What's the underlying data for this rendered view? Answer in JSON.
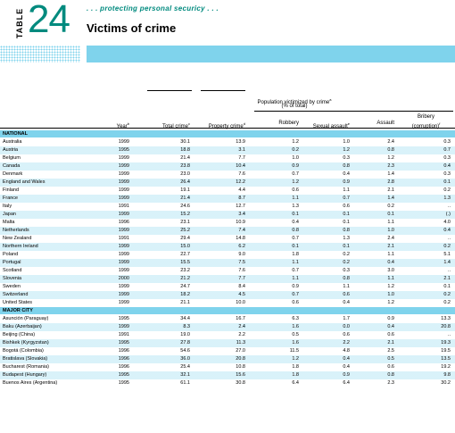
{
  "header": {
    "table_label": "TABLE",
    "table_number": "24",
    "tagline": ". . . protecting personal securicy . . .",
    "title": "Victims of crime"
  },
  "columns": {
    "group_title": "Population victimized by crime",
    "group_sup": "a",
    "group_sub": "(% of total)",
    "year": "Year",
    "year_sup": "b",
    "total": "Total crime",
    "total_sup": "c",
    "property": "Property crime",
    "property_sup": "d",
    "robbery": "Robbery",
    "sexual": "Sexual assault",
    "sexual_sup": "e",
    "assault": "Assault",
    "bribery_1": "Bribery",
    "bribery_2": "(corruption)",
    "bribery_sup": "f"
  },
  "sections": {
    "national": "NATIONAL",
    "major_city": "MAJOR CITY"
  },
  "national_rows": [
    [
      "Australia",
      "1999",
      "30.1",
      "13.9",
      "1.2",
      "1.0",
      "2.4",
      "0.3"
    ],
    [
      "Austria",
      "1995",
      "18.8",
      "3.1",
      "0.2",
      "1.2",
      "0.8",
      "0.7"
    ],
    [
      "Belgium",
      "1999",
      "21.4",
      "7.7",
      "1.0",
      "0.3",
      "1.2",
      "0.3"
    ],
    [
      "Canada",
      "1999",
      "23.8",
      "10.4",
      "0.9",
      "0.8",
      "2.3",
      "0.4"
    ],
    [
      "Denmark",
      "1999",
      "23.0",
      "7.6",
      "0.7",
      "0.4",
      "1.4",
      "0.3"
    ],
    [
      "England and Wales",
      "1999",
      "26.4",
      "12.2",
      "1.2",
      "0.9",
      "2.8",
      "0.1"
    ],
    [
      "Finland",
      "1999",
      "19.1",
      "4.4",
      "0.6",
      "1.1",
      "2.1",
      "0.2"
    ],
    [
      "France",
      "1999",
      "21.4",
      "8.7",
      "1.1",
      "0.7",
      "1.4",
      "1.3"
    ],
    [
      "Italy",
      "1991",
      "24.6",
      "12.7",
      "1.3",
      "0.6",
      "0.2",
      ".."
    ],
    [
      "Japan",
      "1999",
      "15.2",
      "3.4",
      "0.1",
      "0.1",
      "0.1",
      "(.)"
    ],
    [
      "Malta",
      "1996",
      "23.1",
      "10.9",
      "0.4",
      "0.1",
      "1.1",
      "4.0"
    ],
    [
      "Netherlands",
      "1999",
      "25.2",
      "7.4",
      "0.8",
      "0.8",
      "1.0",
      "0.4"
    ],
    [
      "New Zealand",
      "1991",
      "29.4",
      "14.8",
      "0.7",
      "1.3",
      "2.4",
      ".."
    ],
    [
      "Northern Ireland",
      "1999",
      "15.0",
      "6.2",
      "0.1",
      "0.1",
      "2.1",
      "0.2"
    ],
    [
      "Poland",
      "1999",
      "22.7",
      "9.0",
      "1.8",
      "0.2",
      "1.1",
      "5.1"
    ],
    [
      "Portugal",
      "1999",
      "15.5",
      "7.5",
      "1.1",
      "0.2",
      "0.4",
      "1.4"
    ],
    [
      "Scotland",
      "1999",
      "23.2",
      "7.6",
      "0.7",
      "0.3",
      "3.0",
      ".."
    ],
    [
      "Slovenia",
      "2000",
      "21.2",
      "7.7",
      "1.1",
      "0.8",
      "1.1",
      "2.1"
    ],
    [
      "Sweden",
      "1999",
      "24.7",
      "8.4",
      "0.9",
      "1.1",
      "1.2",
      "0.1"
    ],
    [
      "Switzerland",
      "1999",
      "18.2",
      "4.5",
      "0.7",
      "0.6",
      "1.0",
      "0.2"
    ],
    [
      "United States",
      "1999",
      "21.1",
      "10.0",
      "0.6",
      "0.4",
      "1.2",
      "0.2"
    ]
  ],
  "city_rows": [
    [
      "Asunción (Paraguay)",
      "1995",
      "34.4",
      "16.7",
      "6.3",
      "1.7",
      "0.9",
      "13.3"
    ],
    [
      "Baku (Azerbaijan)",
      "1999",
      "8.3",
      "2.4",
      "1.6",
      "0.0",
      "0.4",
      "20.8"
    ],
    [
      "Beijing (China)",
      "1991",
      "19.0",
      "2.2",
      "0.5",
      "0.6",
      "0.6",
      ".."
    ],
    [
      "Bishkek (Kyrgyzstan)",
      "1995",
      "27.8",
      "11.3",
      "1.6",
      "2.2",
      "2.1",
      "19.3"
    ],
    [
      "Bogotá (Colombia)",
      "1996",
      "54.6",
      "27.0",
      "11.5",
      "4.8",
      "2.5",
      "19.5"
    ],
    [
      "Bratislava (Slovakia)",
      "1996",
      "36.0",
      "20.8",
      "1.2",
      "0.4",
      "0.5",
      "13.5"
    ],
    [
      "Bucharest (Romania)",
      "1996",
      "25.4",
      "10.8",
      "1.8",
      "0.4",
      "0.6",
      "19.2"
    ],
    [
      "Budapest (Hungary)",
      "1995",
      "32.1",
      "15.6",
      "1.8",
      "0.9",
      "0.8",
      "9.8"
    ],
    [
      "Buenos Aires (Argentina)",
      "1995",
      "61.1",
      "30.8",
      "6.4",
      "6.4",
      "2.3",
      "30.2"
    ]
  ]
}
